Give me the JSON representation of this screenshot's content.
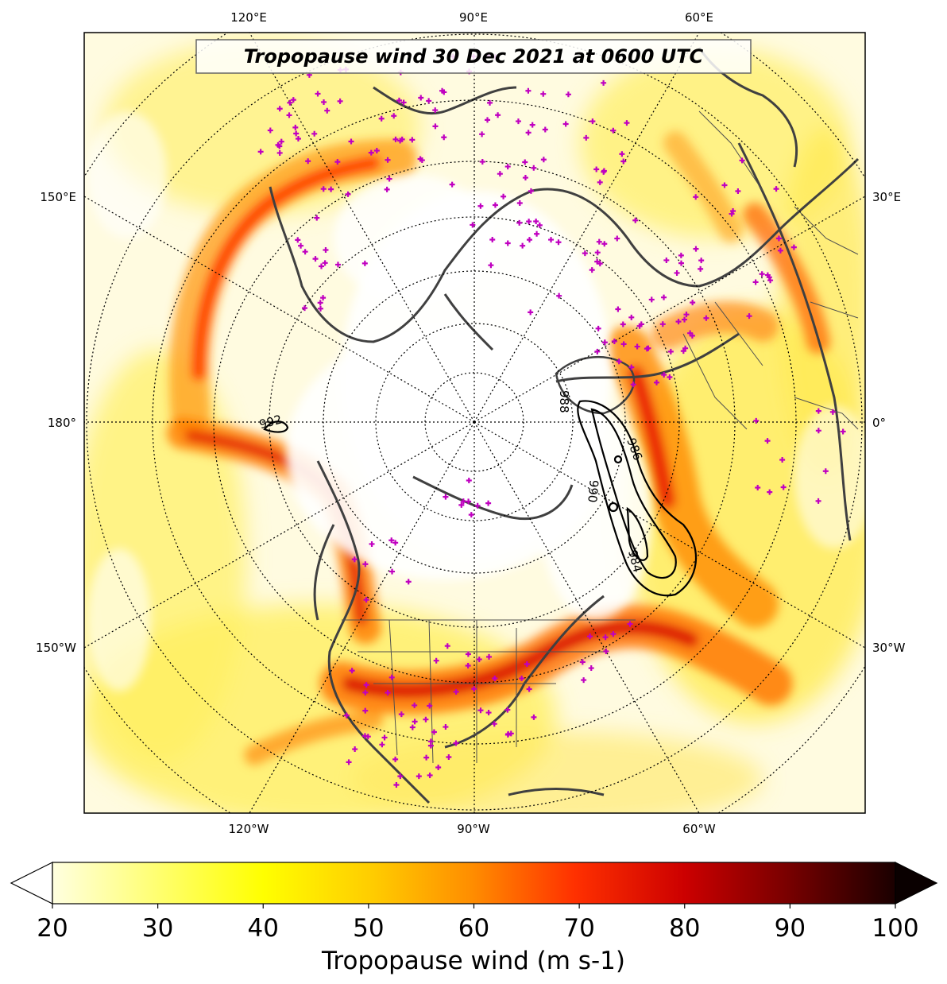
{
  "title": "Tropopause wind 30 Dec 2021 at 0600 UTC",
  "top_longitude_labels": [
    "120°E",
    "90°E",
    "60°E"
  ],
  "bottom_longitude_labels": [
    "120°W",
    "90°W",
    "60°W"
  ],
  "left_longitude_labels": [
    "150°E",
    "180°",
    "150°W"
  ],
  "right_longitude_labels": [
    "30°E",
    "0°",
    "30°W"
  ],
  "contour_labels": [
    "992",
    "984",
    "986",
    "988",
    "990"
  ],
  "colorbar": {
    "label": "Tropopause wind (m s-1)",
    "min": 20,
    "max": 100,
    "extend": "both",
    "tick_labels": [
      "20",
      "30",
      "40",
      "50",
      "60",
      "70",
      "80",
      "90",
      "100"
    ],
    "colors": {
      "light": "#ffffe0",
      "yellow": "#ffff00",
      "orange": "#ff8c00",
      "red": "#ff0000",
      "dark_red": "#8b0000",
      "black": "#1a0000"
    }
  },
  "colors": {
    "coastline": "#404040",
    "station_marker": "#c000c0",
    "contour": "#000000"
  }
}
